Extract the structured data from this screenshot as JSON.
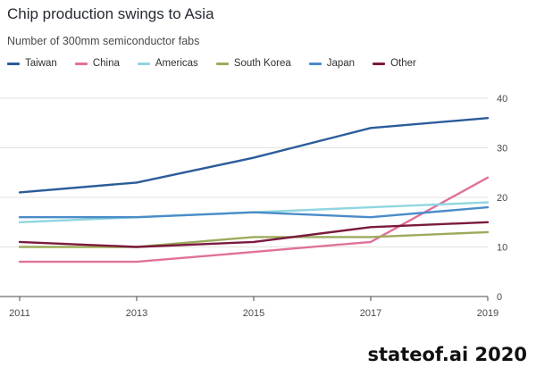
{
  "header": {
    "title": "Chip production swings to Asia",
    "subtitle": "Number of 300mm semiconductor fabs"
  },
  "watermark": "stateof.ai 2020",
  "chart_data": {
    "type": "line",
    "title": "Chip production swings to Asia",
    "subtitle": "Number of 300mm semiconductor fabs",
    "xlabel": "",
    "ylabel": "",
    "x": [
      2011,
      2013,
      2015,
      2017,
      2019
    ],
    "x_ticks": [
      "2011",
      "2013",
      "2015",
      "2017",
      "2019"
    ],
    "y_ticks": [
      "0",
      "10",
      "20",
      "30",
      "40"
    ],
    "ylim": [
      0,
      40
    ],
    "grid": true,
    "legend_position": "top",
    "series": [
      {
        "name": "Taiwan",
        "color": "#2b5c9a",
        "values": [
          21,
          23,
          28,
          34,
          36
        ]
      },
      {
        "name": "China",
        "color": "#e0719a",
        "values": [
          7,
          7,
          9,
          11,
          24
        ]
      },
      {
        "name": "Americas",
        "color": "#8fd6e0",
        "values": [
          15,
          16,
          17,
          18,
          19
        ]
      },
      {
        "name": "South Korea",
        "color": "#9cab5c",
        "values": [
          10,
          10,
          12,
          12,
          13
        ]
      },
      {
        "name": "Japan",
        "color": "#4a8cc9",
        "values": [
          16,
          16,
          17,
          16,
          18
        ]
      },
      {
        "name": "Other",
        "color": "#7b1a3d",
        "values": [
          11,
          10,
          11,
          14,
          15
        ]
      }
    ]
  }
}
